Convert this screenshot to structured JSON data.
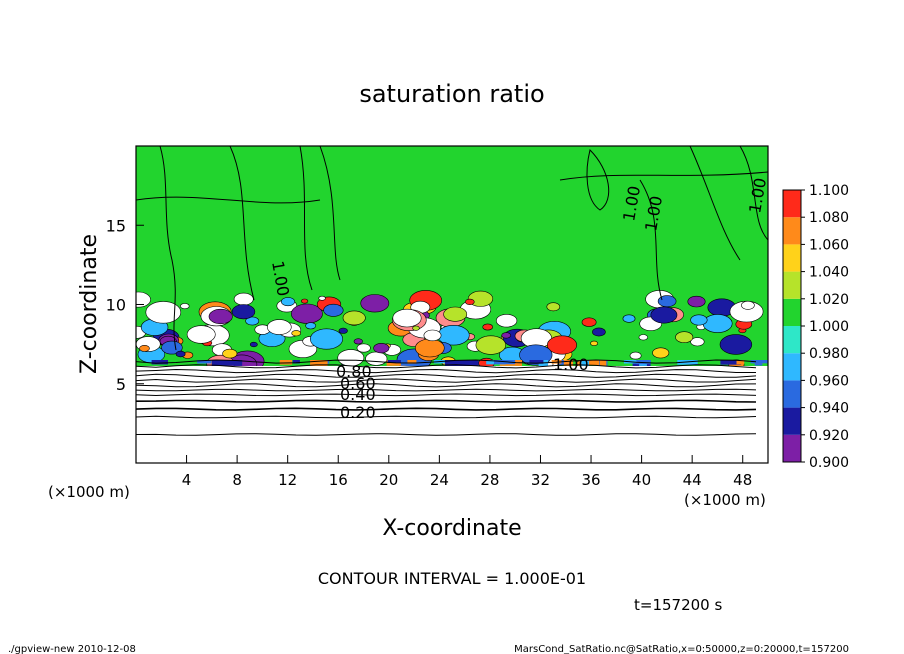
{
  "chart_data": {
    "type": "heatmap",
    "title": "saturation ratio",
    "xlabel": "X-coordinate",
    "ylabel": "Z-coordinate",
    "x_unit": "(×1000 m)",
    "z_unit": "(×1000 m)",
    "xlim": [
      0,
      50
    ],
    "ylim": [
      0,
      20
    ],
    "x_ticks": [
      4,
      8,
      12,
      16,
      20,
      24,
      28,
      32,
      36,
      40,
      44,
      48
    ],
    "y_ticks": [
      5,
      10,
      15
    ],
    "colorbar": {
      "levels": [
        "0.900",
        "0.920",
        "0.940",
        "0.960",
        "0.980",
        "1.000",
        "1.020",
        "1.040",
        "1.060",
        "1.080",
        "1.100"
      ],
      "colors": [
        "#7d1fa6",
        "#1a1aa0",
        "#2a6ae0",
        "#2fb8ff",
        "#2ee7c8",
        "#22d42e",
        "#b6e32a",
        "#ffd21a",
        "#ff8a1a",
        "#ff2a1a",
        "#ff8c8c"
      ]
    },
    "contour_labels": [
      "1.00",
      "1.00",
      "1.00",
      "1.00",
      "1.00",
      "0.80",
      "0.60",
      "0.40",
      "0.20"
    ],
    "contour_interval_text": "CONTOUR INTERVAL = 1.000E-01",
    "time_text": "t=157200 s"
  },
  "footer": {
    "left": "./gpview-new  2010-12-08",
    "right": "MarsCond_SatRatio.nc@SatRatio,x=0:50000,z=0:20000,t=157200"
  },
  "colors": {
    "saturated": "#22d42e",
    "background": "#ffffff"
  }
}
